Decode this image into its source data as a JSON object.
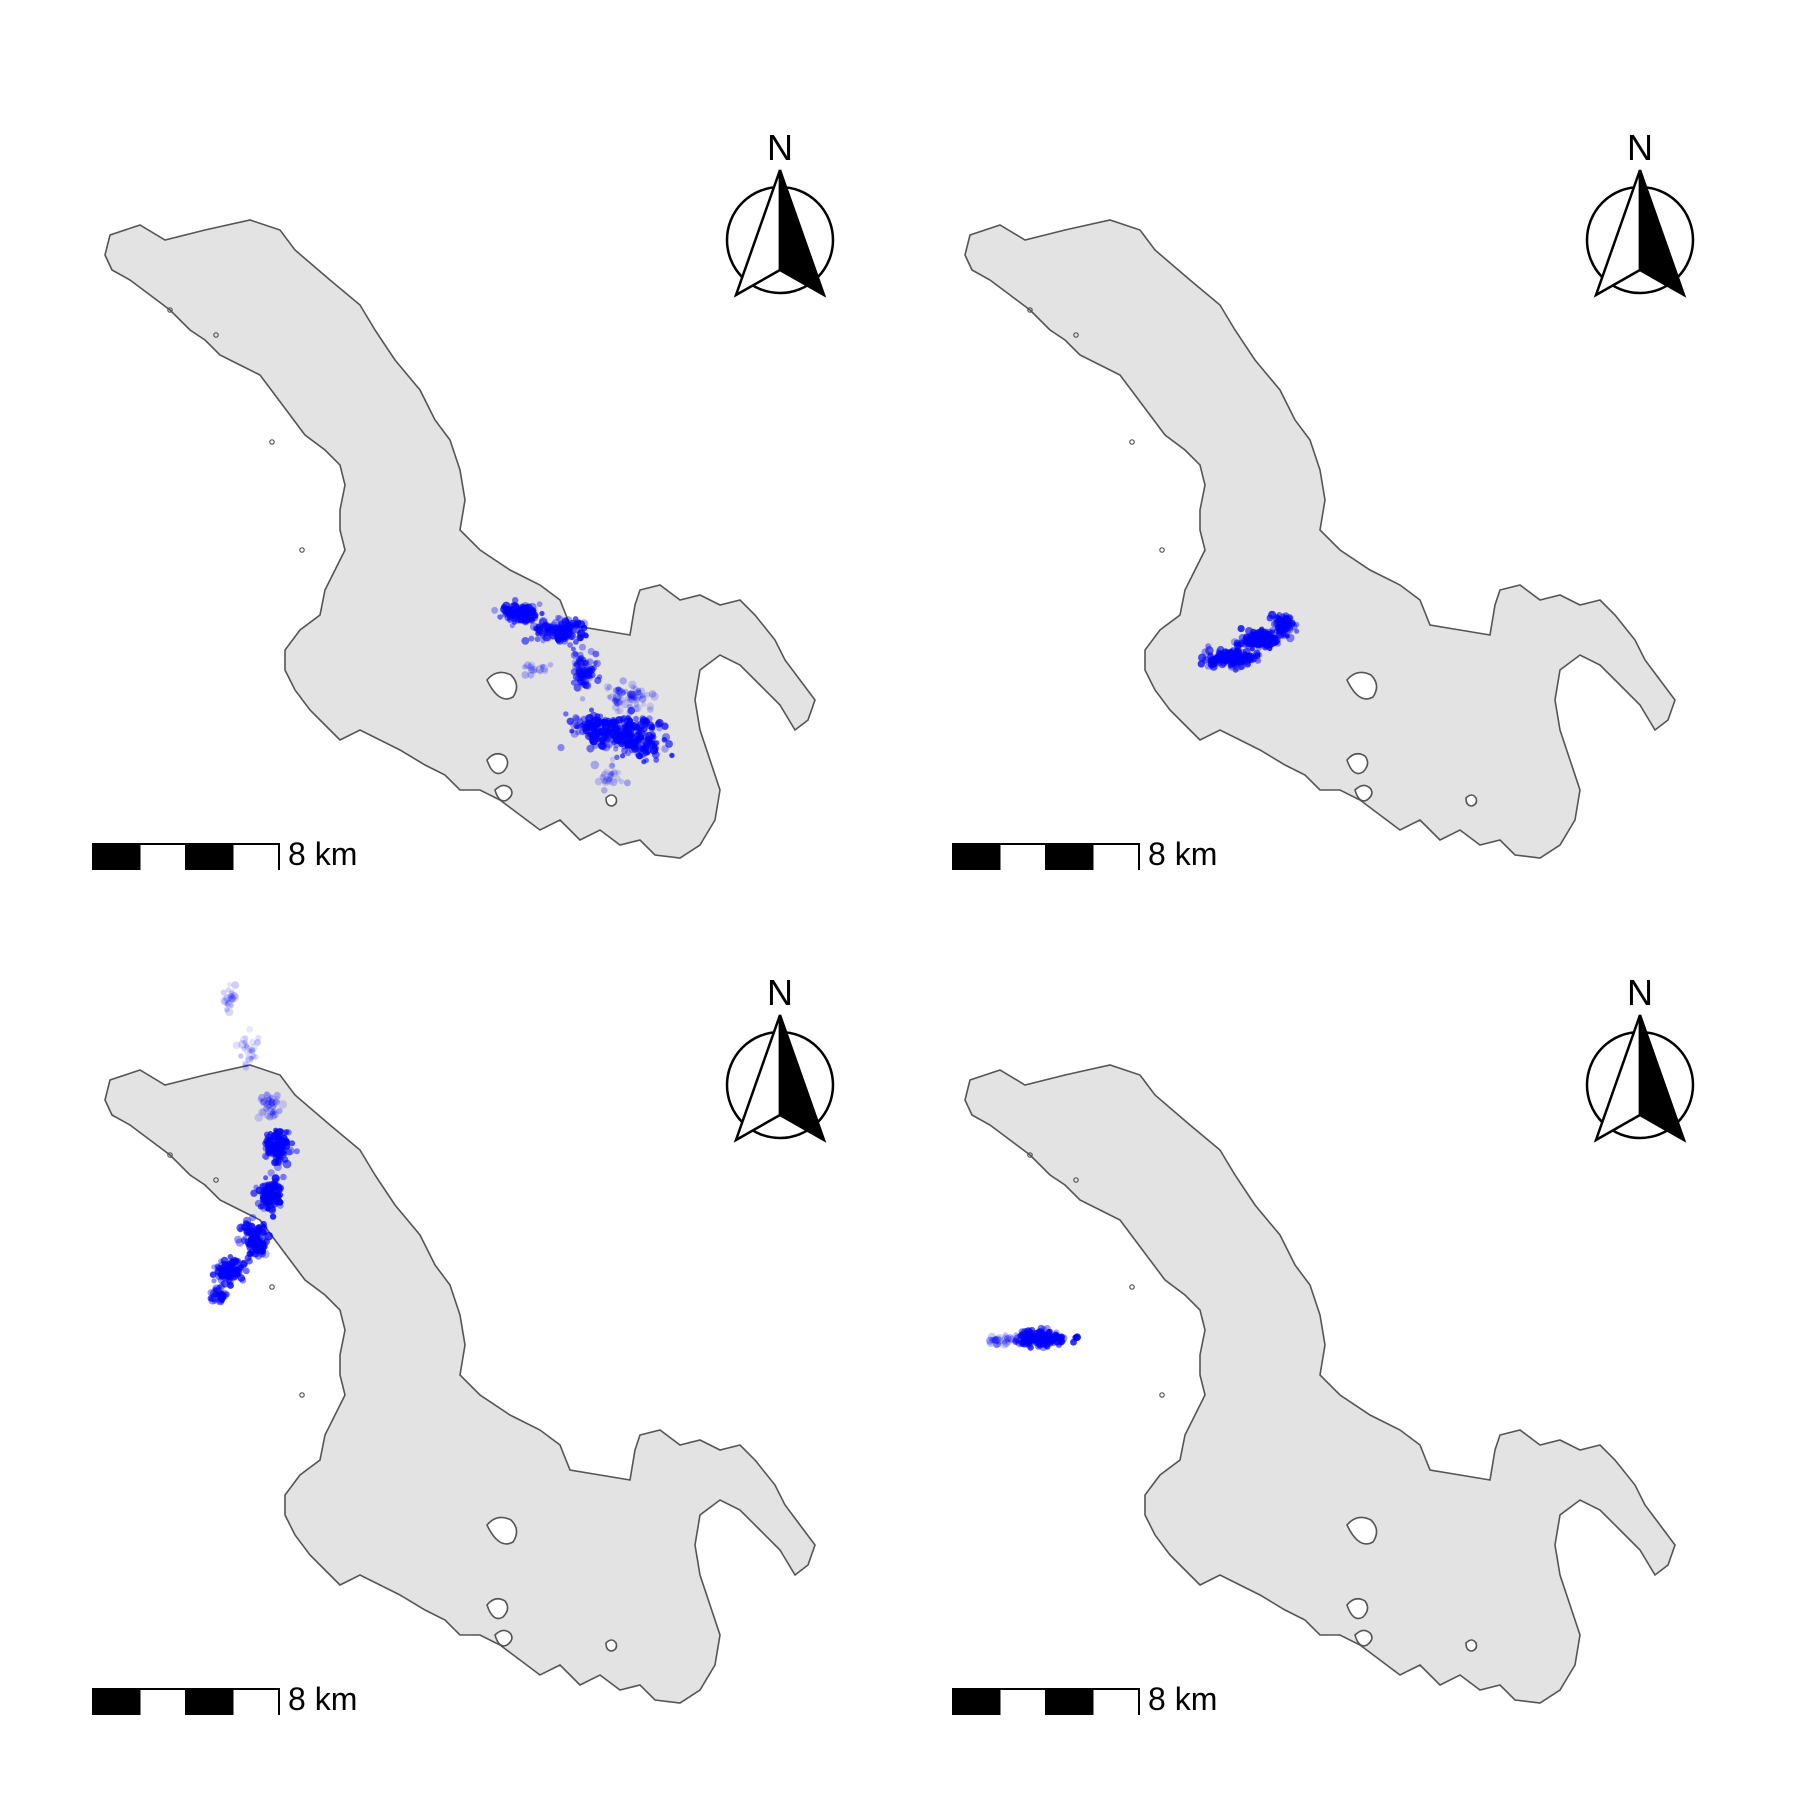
{
  "figure": {
    "panels": [
      {
        "id": "panel-1",
        "north_label": "N",
        "scale_label": "8 km",
        "scale_distance_km": 8,
        "track_color": "#0000ff",
        "track_cluster": "central-east shore, loop toward south-east bay"
      },
      {
        "id": "panel-2",
        "north_label": "N",
        "scale_label": "8 km",
        "scale_distance_km": 8,
        "track_color": "#0000ff",
        "track_cluster": "central lake, compact elongated cluster"
      },
      {
        "id": "panel-3",
        "north_label": "N",
        "scale_label": "8 km",
        "scale_distance_km": 8,
        "track_color": "#0000ff",
        "track_cluster": "north-west arm, extending north beyond shoreline"
      },
      {
        "id": "panel-4",
        "north_label": "N",
        "scale_label": "8 km",
        "scale_distance_km": 8,
        "track_color": "#0000ff",
        "track_cluster": "western shore, small cluster"
      }
    ],
    "colors": {
      "lake_fill": "#e3e3e3",
      "lake_outline": "#555555",
      "points": "#0000ff",
      "scalebar_dark": "#000000",
      "scalebar_light": "#ffffff"
    }
  }
}
